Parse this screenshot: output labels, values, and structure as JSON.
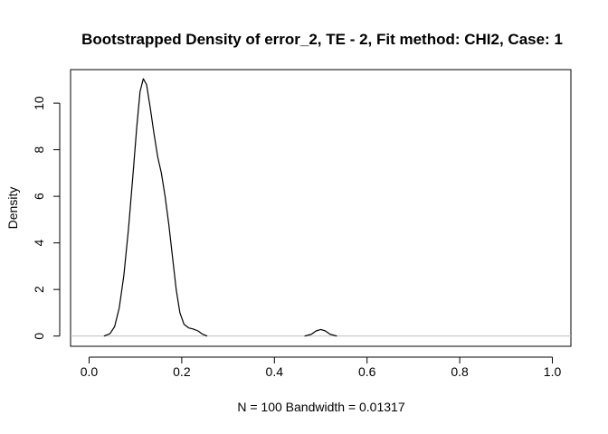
{
  "chart_data": {
    "type": "line",
    "title": "Bootstrapped Density of error_2, TE - 2, Fit method: CHI2, Case: 1",
    "xlabel": "N = 100   Bandwidth = 0.01317",
    "ylabel": "Density",
    "xlim": [
      -0.04,
      1.04
    ],
    "ylim": [
      -0.44,
      11.44
    ],
    "x_ticks": [
      0.0,
      0.2,
      0.4,
      0.6,
      0.8,
      1.0
    ],
    "x_tick_labels": [
      "0.0",
      "0.2",
      "0.4",
      "0.6",
      "0.8",
      "1.0"
    ],
    "y_ticks": [
      0,
      2,
      4,
      6,
      8,
      10
    ],
    "y_tick_labels": [
      "0",
      "2",
      "4",
      "6",
      "8",
      "10"
    ],
    "grid": false,
    "baseline": {
      "y": 0,
      "color": "#bebebe"
    },
    "series": [
      {
        "color": "#000000",
        "points": [
          [
            0.032,
            0.0
          ],
          [
            0.045,
            0.1
          ],
          [
            0.055,
            0.4
          ],
          [
            0.065,
            1.2
          ],
          [
            0.075,
            2.6
          ],
          [
            0.085,
            4.6
          ],
          [
            0.095,
            7.0
          ],
          [
            0.103,
            9.0
          ],
          [
            0.11,
            10.5
          ],
          [
            0.117,
            11.05
          ],
          [
            0.124,
            10.8
          ],
          [
            0.132,
            9.8
          ],
          [
            0.14,
            8.7
          ],
          [
            0.148,
            7.7
          ],
          [
            0.156,
            7.0
          ],
          [
            0.164,
            6.0
          ],
          [
            0.172,
            4.8
          ],
          [
            0.18,
            3.4
          ],
          [
            0.188,
            2.0
          ],
          [
            0.196,
            1.0
          ],
          [
            0.205,
            0.5
          ],
          [
            0.215,
            0.35
          ],
          [
            0.225,
            0.3
          ],
          [
            0.235,
            0.22
          ],
          [
            0.245,
            0.08
          ],
          [
            0.255,
            0.0
          ]
        ]
      },
      {
        "color": "#000000",
        "points": [
          [
            0.465,
            0.0
          ],
          [
            0.48,
            0.08
          ],
          [
            0.49,
            0.22
          ],
          [
            0.5,
            0.28
          ],
          [
            0.51,
            0.22
          ],
          [
            0.52,
            0.08
          ],
          [
            0.535,
            0.0
          ]
        ]
      }
    ]
  }
}
